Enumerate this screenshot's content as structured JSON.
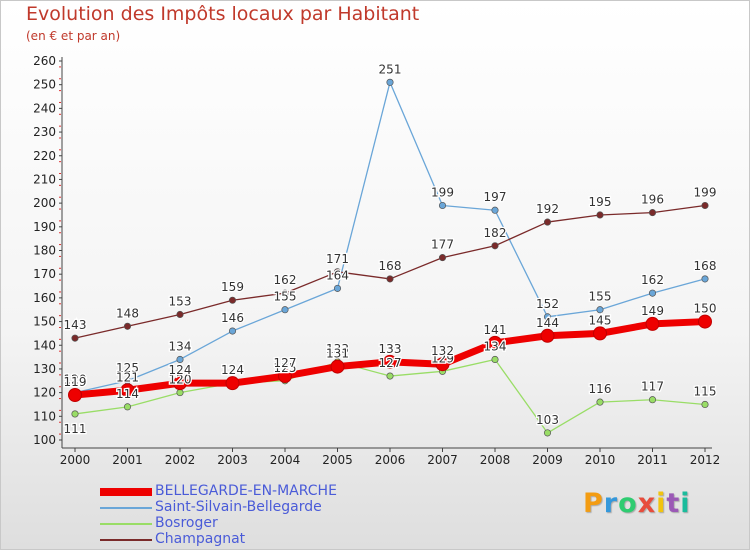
{
  "chart_data": {
    "type": "line",
    "title": "Evolution des Impôts locaux par Habitant",
    "subtitle": "(en € et par an)",
    "xlabel": "",
    "ylabel": "",
    "ylim": [
      100,
      260
    ],
    "yticks": [
      "100",
      "110",
      "120",
      "130",
      "140",
      "150",
      "160",
      "170",
      "180",
      "190",
      "200",
      "210",
      "220",
      "230",
      "240",
      "250",
      "260"
    ],
    "x": [
      "2000",
      "2001",
      "2002",
      "2003",
      "2004",
      "2005",
      "2006",
      "2007",
      "2008",
      "2009",
      "2010",
      "2011",
      "2012"
    ],
    "series": [
      {
        "name": "BELLEGARDE-EN-MARCHE",
        "color": "#ee0000",
        "values": [
          119,
          121,
          124,
          124,
          127,
          131,
          133,
          132,
          141,
          144,
          145,
          149,
          150
        ],
        "labels": [
          "119",
          "121",
          "124",
          "124",
          "127",
          "131",
          "133",
          "132",
          "141",
          "144",
          "145",
          "149",
          "150"
        ]
      },
      {
        "name": "Saint-Silvain-Bellegarde",
        "color": "#6aa6d8",
        "values": [
          120,
          125,
          134,
          146,
          155,
          164,
          251,
          199,
          197,
          152,
          155,
          162,
          168
        ],
        "labels": [
          "120",
          "125",
          "134",
          "146",
          "155",
          "164",
          "251",
          "199",
          "197",
          "152",
          "155",
          "162",
          "168"
        ]
      },
      {
        "name": "Bosroger",
        "color": "#99dd66",
        "values": [
          111,
          114,
          120,
          124,
          125,
          133,
          127,
          129,
          134,
          103,
          116,
          117,
          115
        ],
        "labels": [
          "111",
          "114",
          "120",
          "124",
          "125",
          "133",
          "127",
          "129",
          "134",
          "103",
          "116",
          "117",
          "115"
        ]
      },
      {
        "name": "Champagnat",
        "color": "#7a2a2a",
        "values": [
          143,
          148,
          153,
          159,
          162,
          171,
          168,
          177,
          182,
          192,
          195,
          196,
          199
        ],
        "labels": [
          "143",
          "148",
          "153",
          "159",
          "162",
          "171",
          "168",
          "177",
          "182",
          "192",
          "195",
          "196",
          "199"
        ]
      }
    ],
    "grid": false,
    "legend_position": "bottom-left"
  },
  "branding": {
    "logo_letters": [
      "P",
      "r",
      "o",
      "x",
      "i",
      "t",
      "i"
    ],
    "logo_colors": [
      "#f39c12",
      "#3498db",
      "#2ecc71",
      "#e74c3c",
      "#f1c40f",
      "#9b59b6",
      "#1abc9c"
    ]
  }
}
